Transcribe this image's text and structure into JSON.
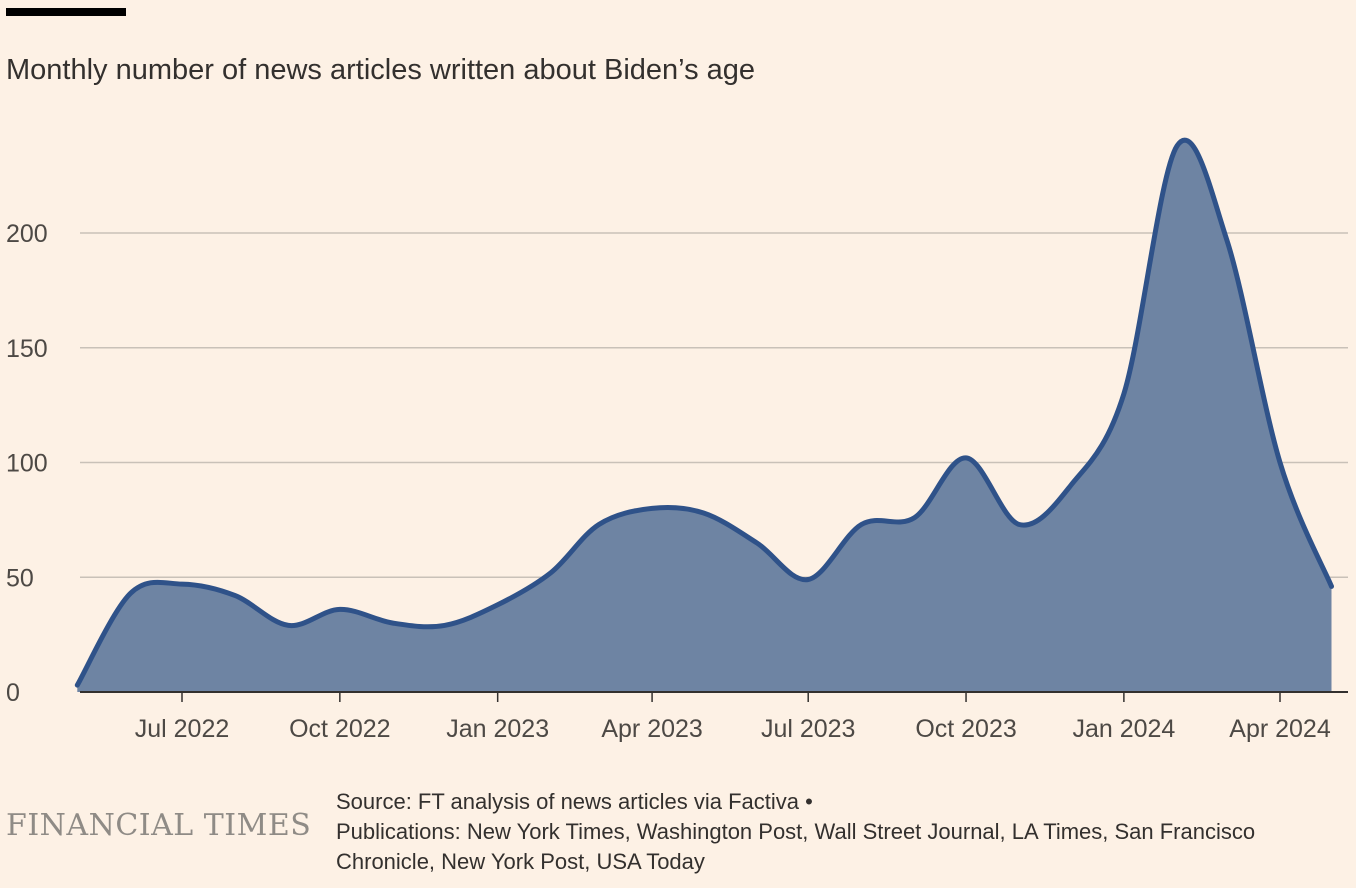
{
  "chart_data": {
    "type": "area",
    "title": "",
    "subtitle": "Monthly number of news articles written about Biden’s age",
    "xlabel": "",
    "ylabel": "",
    "ylim": [
      0,
      240
    ],
    "y_ticks": [
      0,
      50,
      100,
      150,
      200
    ],
    "x_ticks": [
      {
        "date": "2022-07-01",
        "label": "Jul 2022"
      },
      {
        "date": "2022-10-01",
        "label": "Oct 2022"
      },
      {
        "date": "2023-01-01",
        "label": "Jan 2023"
      },
      {
        "date": "2023-04-01",
        "label": "Apr 2023"
      },
      {
        "date": "2023-07-01",
        "label": "Jul 2023"
      },
      {
        "date": "2023-10-01",
        "label": "Oct 2023"
      },
      {
        "date": "2024-01-01",
        "label": "Jan 2024"
      },
      {
        "date": "2024-04-01",
        "label": "Apr 2024"
      }
    ],
    "grid": true,
    "legend": "none",
    "series": [
      {
        "color": "#6e84a3",
        "line_color": "#2f5289",
        "points": [
          {
            "date": "2022-05-01",
            "value": 3
          },
          {
            "date": "2022-06-01",
            "value": 43
          },
          {
            "date": "2022-07-01",
            "value": 47
          },
          {
            "date": "2022-08-01",
            "value": 42
          },
          {
            "date": "2022-09-01",
            "value": 29
          },
          {
            "date": "2022-10-01",
            "value": 36
          },
          {
            "date": "2022-11-01",
            "value": 30
          },
          {
            "date": "2022-12-01",
            "value": 29
          },
          {
            "date": "2023-01-01",
            "value": 38
          },
          {
            "date": "2023-02-01",
            "value": 52
          },
          {
            "date": "2023-03-01",
            "value": 73
          },
          {
            "date": "2023-04-01",
            "value": 80
          },
          {
            "date": "2023-05-01",
            "value": 78
          },
          {
            "date": "2023-06-01",
            "value": 65
          },
          {
            "date": "2023-07-01",
            "value": 49
          },
          {
            "date": "2023-08-01",
            "value": 73
          },
          {
            "date": "2023-09-01",
            "value": 76
          },
          {
            "date": "2023-10-01",
            "value": 102
          },
          {
            "date": "2023-11-01",
            "value": 73
          },
          {
            "date": "2023-12-01",
            "value": 90
          },
          {
            "date": "2024-01-01",
            "value": 130
          },
          {
            "date": "2024-02-01",
            "value": 238
          },
          {
            "date": "2024-03-01",
            "value": 197
          },
          {
            "date": "2024-04-01",
            "value": 100
          },
          {
            "date": "2024-05-01",
            "value": 46
          }
        ]
      }
    ]
  },
  "footer": {
    "logo_text": "FINANCIAL TIMES",
    "source_line1": "Source: FT analysis of news articles via Factiva •",
    "source_line2": "Publications: New York Times, Washington Post, Wall Street Journal, LA Times, San Francisco Chronicle, New York Post, USA Today"
  }
}
